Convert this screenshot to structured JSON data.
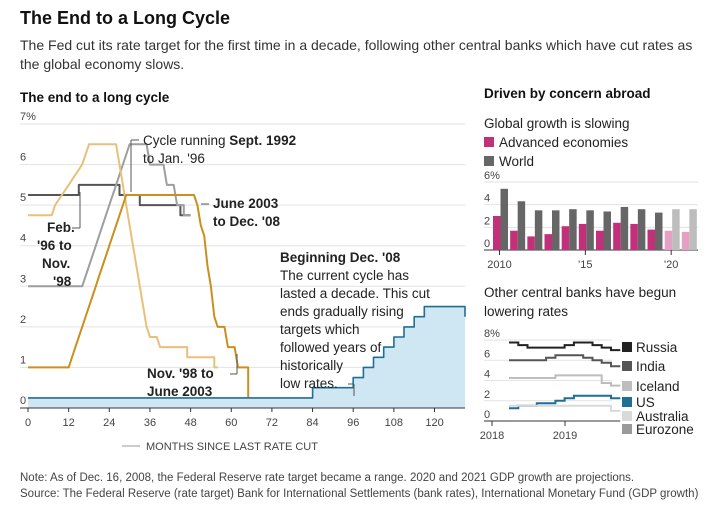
{
  "title": "The End to a Long Cycle",
  "subtitle": "The Fed cut its rate target for the first time in a decade, following other central banks which have cut rates as the global economy slows.",
  "notes": {
    "note": "Note: As of Dec. 16, 2008, the Federal Reserve rate target became a range. 2020 and 2021 GDP growth are projections.",
    "source": "Source: The Federal Reserve (rate target) Bank for International Settlements (bank rates), International Monetary Fund (GDP growth)"
  },
  "colors": {
    "cycle_1992": "#555555",
    "cycle_1996": "#9e9e9e",
    "cycle_1998": "#e8c07a",
    "cycle_2003": "#c9901e",
    "cycle_2008": "#1f6f95",
    "cycle_2008_fill": "#cfe6f3",
    "advanced": "#c2307a",
    "world": "#666666",
    "grid": "#e2e2e2"
  },
  "chart_data": [
    {
      "type": "line",
      "title": "The end to a long cycle",
      "xlabel": "MONTHS SINCE LAST RATE CUT",
      "ylabel": "",
      "x_ticks": [
        "0",
        "12",
        "24",
        "36",
        "48",
        "60",
        "72",
        "84",
        "96",
        "108",
        "120"
      ],
      "y_ticks": [
        "0",
        "1",
        "2",
        "3",
        "4",
        "5",
        "6",
        "7%"
      ],
      "xlim": [
        0,
        129
      ],
      "ylim": [
        0,
        7
      ],
      "series": [
        {
          "key": "cycle_1992",
          "points": [
            [
              0,
              5.25
            ],
            [
              15,
              5.25
            ],
            [
              15,
              5.5
            ],
            [
              27,
              5.5
            ],
            [
              27,
              5.25
            ],
            [
              33,
              5.25
            ],
            [
              33,
              5.0
            ],
            [
              45,
              5.0
            ],
            [
              45,
              4.75
            ],
            [
              48,
              4.75
            ]
          ]
        },
        {
          "key": "cycle_1996",
          "points": [
            [
              0,
              3
            ],
            [
              16,
              3
            ],
            [
              18,
              3.5
            ],
            [
              20,
              4
            ],
            [
              22,
              4.5
            ],
            [
              24,
              5
            ],
            [
              26,
              5.5
            ],
            [
              28,
              6
            ],
            [
              30,
              6.5
            ],
            [
              35,
              6.5
            ],
            [
              36,
              6
            ],
            [
              40,
              6
            ],
            [
              41,
              5.5
            ],
            [
              43,
              5.5
            ],
            [
              44,
              5
            ],
            [
              46,
              5
            ],
            [
              46,
              4.75
            ],
            [
              48,
              4.75
            ]
          ]
        },
        {
          "key": "cycle_1998",
          "points": [
            [
              0,
              4.75
            ],
            [
              7,
              4.75
            ],
            [
              8,
              5
            ],
            [
              10,
              5.25
            ],
            [
              12,
              5.5
            ],
            [
              14,
              5.75
            ],
            [
              16,
              6
            ],
            [
              18,
              6.5
            ],
            [
              26,
              6.5
            ],
            [
              27,
              6
            ],
            [
              28,
              5.5
            ],
            [
              29,
              5
            ],
            [
              30,
              4.5
            ],
            [
              31,
              4
            ],
            [
              32,
              3.5
            ],
            [
              33,
              3
            ],
            [
              34,
              2.5
            ],
            [
              35,
              2
            ],
            [
              36,
              1.75
            ],
            [
              38,
              1.75
            ],
            [
              39,
              1.5
            ],
            [
              47,
              1.5
            ],
            [
              47,
              1.25
            ],
            [
              55,
              1.25
            ],
            [
              55,
              1.0
            ],
            [
              56,
              1.0
            ]
          ]
        },
        {
          "key": "cycle_2003",
          "points": [
            [
              0,
              1
            ],
            [
              12,
              1
            ],
            [
              13,
              1.25
            ],
            [
              14,
              1.5
            ],
            [
              15,
              1.75
            ],
            [
              16,
              2
            ],
            [
              17,
              2.25
            ],
            [
              18,
              2.5
            ],
            [
              19,
              2.75
            ],
            [
              20,
              3
            ],
            [
              21,
              3.25
            ],
            [
              22,
              3.5
            ],
            [
              23,
              3.75
            ],
            [
              24,
              4
            ],
            [
              25,
              4.25
            ],
            [
              26,
              4.5
            ],
            [
              27,
              4.75
            ],
            [
              28,
              5
            ],
            [
              29,
              5.25
            ],
            [
              49,
              5.25
            ],
            [
              50,
              5
            ],
            [
              51,
              4.5
            ],
            [
              52,
              4.25
            ],
            [
              53,
              3.5
            ],
            [
              54,
              3
            ],
            [
              55,
              2.25
            ],
            [
              56,
              2
            ],
            [
              58,
              2
            ],
            [
              59,
              1.5
            ],
            [
              61,
              1.5
            ],
            [
              62,
              1
            ],
            [
              65,
              1
            ],
            [
              65,
              0
            ]
          ]
        },
        {
          "key": "cycle_2008",
          "fill": true,
          "points": [
            [
              0,
              0.25
            ],
            [
              84,
              0.25
            ],
            [
              84,
              0.5
            ],
            [
              96,
              0.5
            ],
            [
              96,
              0.75
            ],
            [
              99,
              0.75
            ],
            [
              99,
              1.0
            ],
            [
              102,
              1.0
            ],
            [
              102,
              1.25
            ],
            [
              105,
              1.25
            ],
            [
              105,
              1.5
            ],
            [
              108,
              1.5
            ],
            [
              108,
              1.75
            ],
            [
              111,
              1.75
            ],
            [
              111,
              2.0
            ],
            [
              114,
              2.0
            ],
            [
              114,
              2.25
            ],
            [
              117,
              2.25
            ],
            [
              117,
              2.5
            ],
            [
              129,
              2.5
            ],
            [
              129,
              2.25
            ]
          ]
        }
      ],
      "annotations": {
        "a1992_pre": "Cycle running ",
        "a1992_bold": "Sept. 1992",
        "a1992_l2": "to Jan. '96",
        "a1996_l1": "Feb.",
        "a1996_l2": "'96 to",
        "a1996_l3": "Nov.",
        "a1996_l4": "'98",
        "a2003_l1": "June 2003",
        "a2003_l2": "to Dec. '08",
        "a1998_l1": "Nov. '98 to",
        "a1998_l2": "June 2003",
        "a2008_l1": "Beginning Dec. '08",
        "a2008_body": [
          "The current cycle has",
          "lasted a decade. This cut",
          "ends gradually rising",
          "targets which",
          "followed years of",
          "historically",
          "low rates."
        ]
      }
    },
    {
      "type": "bar",
      "title": "Global growth is slowing",
      "heading": "Driven by concern abroad",
      "y_ticks": [
        "0",
        "2",
        "4",
        "6%"
      ],
      "ylim": [
        0,
        6
      ],
      "x_ticks": [
        "2010",
        "'15",
        "'20"
      ],
      "categories": [
        "2010",
        "2011",
        "2012",
        "2013",
        "2014",
        "2015",
        "2016",
        "2017",
        "2018",
        "2019",
        "2020",
        "2021"
      ],
      "projected_from": "2020",
      "series": [
        {
          "name": "Advanced economies",
          "key": "advanced",
          "values": [
            3.0,
            1.7,
            1.2,
            1.4,
            2.1,
            2.3,
            1.7,
            2.4,
            2.3,
            1.8,
            1.7,
            1.6
          ]
        },
        {
          "name": "World",
          "key": "world",
          "values": [
            5.4,
            4.3,
            3.5,
            3.5,
            3.6,
            3.5,
            3.4,
            3.8,
            3.6,
            3.3,
            3.6,
            3.6
          ]
        }
      ]
    },
    {
      "type": "line",
      "title": "Other central banks have begun lowering rates",
      "y_ticks": [
        "0",
        "2",
        "4",
        "6",
        "8%"
      ],
      "ylim": [
        0,
        8
      ],
      "x_ticks": [
        "2018",
        "2019"
      ],
      "series": [
        {
          "name": "Russia",
          "color": "#222222",
          "values": [
            7.75,
            7.5,
            7.25,
            7.25,
            7.25,
            7.25,
            7.5,
            7.75,
            7.75,
            7.5,
            7.25,
            7.0
          ]
        },
        {
          "name": "India",
          "color": "#555555",
          "values": [
            6.0,
            6.0,
            6.0,
            6.0,
            6.25,
            6.5,
            6.5,
            6.5,
            6.25,
            6.0,
            5.75,
            5.4
          ]
        },
        {
          "name": "Iceland",
          "color": "#bdbdbd",
          "values": [
            4.25,
            4.25,
            4.25,
            4.25,
            4.25,
            4.5,
            4.5,
            4.5,
            4.5,
            4.5,
            3.75,
            3.5
          ]
        },
        {
          "name": "US",
          "color": "#1f6f95",
          "values": [
            1.25,
            1.5,
            1.5,
            1.75,
            1.75,
            2.0,
            2.25,
            2.5,
            2.5,
            2.5,
            2.5,
            2.25
          ]
        },
        {
          "name": "Australia",
          "color": "#d9d9d9",
          "values": [
            1.5,
            1.5,
            1.5,
            1.5,
            1.5,
            1.5,
            1.5,
            1.5,
            1.5,
            1.5,
            1.5,
            1.0
          ]
        },
        {
          "name": "Eurozone",
          "color": "#9a9a9a",
          "values": [
            0,
            0,
            0,
            0,
            0,
            0,
            0,
            0,
            0,
            0,
            0,
            0
          ]
        }
      ]
    }
  ]
}
